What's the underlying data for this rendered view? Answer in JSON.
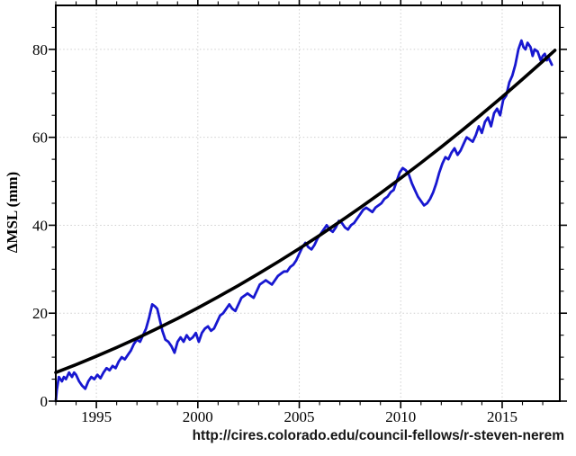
{
  "chart_data": {
    "type": "line",
    "title": "",
    "xlabel": "",
    "ylabel": "ΔMSL (mm)",
    "xlim": [
      1993,
      2017.84
    ],
    "ylim": [
      0,
      90
    ],
    "x_major_ticks": [
      1995,
      2000,
      2005,
      2010,
      2015
    ],
    "x_minor_tick_step_years": 1,
    "y_major_ticks": [
      0,
      20,
      40,
      60,
      80
    ],
    "y_minor_tick_step": 5,
    "grid": {
      "show": true,
      "style": "dotted",
      "color": "#cfcfcf",
      "at": "major-ticks-only"
    },
    "legend": {
      "show": false
    },
    "colors": {
      "observed_series": "#1717d0",
      "fit_curve": "#000000",
      "frame": "#000000",
      "tick_labels": "#000000"
    },
    "caption": "http://cires.colorado.edu/council-fellows/r-steven-nerem",
    "series": [
      {
        "name": "observed-gmsl",
        "color": "#1717d0",
        "stroke_width": 2.8,
        "points": [
          [
            1993.0,
            0
          ],
          [
            1993.05,
            2.5
          ],
          [
            1993.15,
            5.5
          ],
          [
            1993.3,
            4.5
          ],
          [
            1993.4,
            5.5
          ],
          [
            1993.5,
            5
          ],
          [
            1993.65,
            6.5
          ],
          [
            1993.8,
            5.5
          ],
          [
            1993.9,
            6.5
          ],
          [
            1994.0,
            6
          ],
          [
            1994.15,
            4.5
          ],
          [
            1994.3,
            3.5
          ],
          [
            1994.45,
            2.8
          ],
          [
            1994.6,
            4.5
          ],
          [
            1994.75,
            5.5
          ],
          [
            1994.9,
            5
          ],
          [
            1995.05,
            6
          ],
          [
            1995.2,
            5.2
          ],
          [
            1995.35,
            6.5
          ],
          [
            1995.5,
            7.5
          ],
          [
            1995.65,
            7
          ],
          [
            1995.8,
            8
          ],
          [
            1995.95,
            7.5
          ],
          [
            1996.1,
            9
          ],
          [
            1996.25,
            10
          ],
          [
            1996.4,
            9.5
          ],
          [
            1996.55,
            10.5
          ],
          [
            1996.7,
            11.5
          ],
          [
            1996.85,
            13
          ],
          [
            1997.0,
            14
          ],
          [
            1997.15,
            13.5
          ],
          [
            1997.3,
            15
          ],
          [
            1997.45,
            16.5
          ],
          [
            1997.6,
            19
          ],
          [
            1997.75,
            22
          ],
          [
            1997.9,
            21.5
          ],
          [
            1998.0,
            21
          ],
          [
            1998.1,
            19
          ],
          [
            1998.25,
            16
          ],
          [
            1998.4,
            14
          ],
          [
            1998.55,
            13.5
          ],
          [
            1998.7,
            12.5
          ],
          [
            1998.85,
            11
          ],
          [
            1999.0,
            13.5
          ],
          [
            1999.15,
            14.5
          ],
          [
            1999.3,
            13.5
          ],
          [
            1999.45,
            15
          ],
          [
            1999.6,
            14
          ],
          [
            1999.75,
            14.5
          ],
          [
            1999.9,
            15.5
          ],
          [
            2000.05,
            13.5
          ],
          [
            2000.2,
            15.5
          ],
          [
            2000.35,
            16.5
          ],
          [
            2000.5,
            17
          ],
          [
            2000.65,
            16
          ],
          [
            2000.8,
            16.5
          ],
          [
            2000.95,
            18
          ],
          [
            2001.1,
            19.5
          ],
          [
            2001.25,
            20
          ],
          [
            2001.4,
            21
          ],
          [
            2001.55,
            22
          ],
          [
            2001.7,
            21
          ],
          [
            2001.85,
            20.5
          ],
          [
            2002.0,
            22
          ],
          [
            2002.15,
            23.5
          ],
          [
            2002.3,
            24
          ],
          [
            2002.45,
            24.5
          ],
          [
            2002.6,
            24
          ],
          [
            2002.75,
            23.5
          ],
          [
            2002.9,
            25
          ],
          [
            2003.05,
            26.5
          ],
          [
            2003.2,
            27
          ],
          [
            2003.35,
            27.5
          ],
          [
            2003.5,
            27
          ],
          [
            2003.65,
            26.5
          ],
          [
            2003.8,
            27.5
          ],
          [
            2003.95,
            28.5
          ],
          [
            2004.1,
            29
          ],
          [
            2004.25,
            29.5
          ],
          [
            2004.4,
            29.5
          ],
          [
            2004.55,
            30.5
          ],
          [
            2004.7,
            31
          ],
          [
            2004.85,
            32
          ],
          [
            2005.0,
            33.5
          ],
          [
            2005.15,
            35
          ],
          [
            2005.3,
            36
          ],
          [
            2005.45,
            35
          ],
          [
            2005.6,
            34.5
          ],
          [
            2005.75,
            35.5
          ],
          [
            2005.9,
            37
          ],
          [
            2006.05,
            38
          ],
          [
            2006.2,
            39
          ],
          [
            2006.35,
            40
          ],
          [
            2006.5,
            39
          ],
          [
            2006.65,
            38.5
          ],
          [
            2006.8,
            39.5
          ],
          [
            2006.95,
            41
          ],
          [
            2007.1,
            40.5
          ],
          [
            2007.25,
            39.5
          ],
          [
            2007.4,
            39
          ],
          [
            2007.55,
            40
          ],
          [
            2007.7,
            40.5
          ],
          [
            2007.85,
            41.5
          ],
          [
            2008.0,
            42.5
          ],
          [
            2008.15,
            43.5
          ],
          [
            2008.3,
            44
          ],
          [
            2008.45,
            43.5
          ],
          [
            2008.6,
            43
          ],
          [
            2008.75,
            44
          ],
          [
            2008.9,
            44.5
          ],
          [
            2009.05,
            45
          ],
          [
            2009.2,
            46
          ],
          [
            2009.35,
            46.5
          ],
          [
            2009.5,
            47.5
          ],
          [
            2009.65,
            48
          ],
          [
            2009.8,
            50
          ],
          [
            2009.95,
            52
          ],
          [
            2010.1,
            53
          ],
          [
            2010.25,
            52.5
          ],
          [
            2010.4,
            51.5
          ],
          [
            2010.55,
            49.5
          ],
          [
            2010.7,
            48
          ],
          [
            2010.85,
            46.5
          ],
          [
            2011.0,
            45.5
          ],
          [
            2011.15,
            44.5
          ],
          [
            2011.3,
            45
          ],
          [
            2011.45,
            46
          ],
          [
            2011.6,
            47.5
          ],
          [
            2011.75,
            49.5
          ],
          [
            2011.9,
            52
          ],
          [
            2012.05,
            54
          ],
          [
            2012.2,
            55.5
          ],
          [
            2012.35,
            55
          ],
          [
            2012.5,
            56.5
          ],
          [
            2012.65,
            57.5
          ],
          [
            2012.8,
            56
          ],
          [
            2012.95,
            57
          ],
          [
            2013.1,
            58.5
          ],
          [
            2013.25,
            60
          ],
          [
            2013.4,
            59.5
          ],
          [
            2013.55,
            59
          ],
          [
            2013.7,
            60.5
          ],
          [
            2013.85,
            62.5
          ],
          [
            2014.0,
            61
          ],
          [
            2014.15,
            63.5
          ],
          [
            2014.3,
            64.5
          ],
          [
            2014.45,
            62.5
          ],
          [
            2014.6,
            65.5
          ],
          [
            2014.75,
            66.5
          ],
          [
            2014.9,
            65
          ],
          [
            2015.05,
            68.5
          ],
          [
            2015.2,
            69.5
          ],
          [
            2015.35,
            72.5
          ],
          [
            2015.5,
            74
          ],
          [
            2015.65,
            76.5
          ],
          [
            2015.8,
            80
          ],
          [
            2015.95,
            82
          ],
          [
            2016.05,
            80.5
          ],
          [
            2016.15,
            80
          ],
          [
            2016.25,
            81.5
          ],
          [
            2016.4,
            80.5
          ],
          [
            2016.5,
            78.5
          ],
          [
            2016.6,
            80
          ],
          [
            2016.75,
            79.5
          ],
          [
            2016.9,
            77.5
          ],
          [
            2017.0,
            78.5
          ],
          [
            2017.1,
            79
          ],
          [
            2017.2,
            77.5
          ],
          [
            2017.3,
            78
          ],
          [
            2017.45,
            76.5
          ]
        ]
      },
      {
        "name": "quadratic-fit",
        "color": "#000000",
        "stroke_width": 3.6,
        "points": [
          [
            1993,
            6.5
          ],
          [
            1994,
            8.3
          ],
          [
            1995,
            10.2
          ],
          [
            1996,
            12.2
          ],
          [
            1997,
            14.3
          ],
          [
            1998,
            16.5
          ],
          [
            1999,
            18.8
          ],
          [
            2000,
            21.2
          ],
          [
            2001,
            23.7
          ],
          [
            2002,
            26.3
          ],
          [
            2003,
            29.0
          ],
          [
            2004,
            31.8
          ],
          [
            2005,
            34.7
          ],
          [
            2006,
            37.7
          ],
          [
            2007,
            40.8
          ],
          [
            2008,
            44.0
          ],
          [
            2009,
            47.3
          ],
          [
            2010,
            50.7
          ],
          [
            2011,
            54.2
          ],
          [
            2012,
            57.8
          ],
          [
            2013,
            61.5
          ],
          [
            2014,
            65.3
          ],
          [
            2015,
            69.2
          ],
          [
            2016,
            73.2
          ],
          [
            2017,
            77.3
          ],
          [
            2017.6,
            79.8
          ]
        ]
      }
    ]
  }
}
